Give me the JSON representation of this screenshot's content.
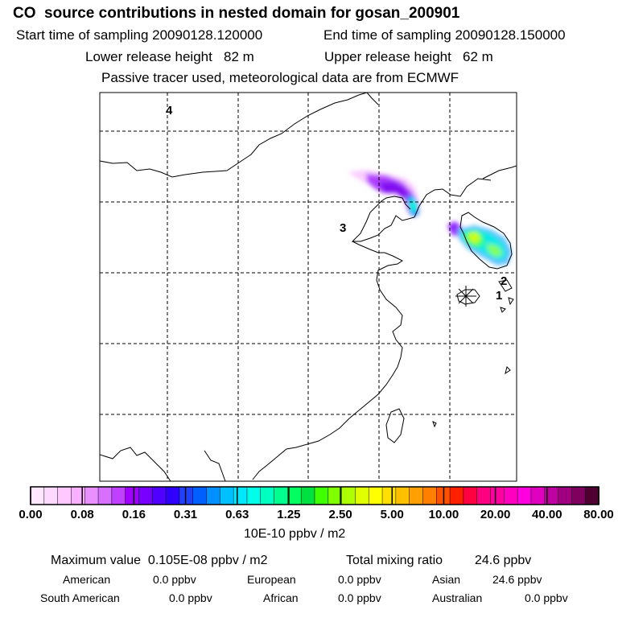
{
  "title": "CO  source contributions in nested domain for gosan_200901",
  "header": {
    "start_time": "Start time of sampling 20090128.120000",
    "end_time": "End time of sampling 20090128.150000",
    "lower_height": "Lower release height   82 m",
    "upper_height": "Upper release height   62 m",
    "tracer_note": "Passive tracer used, meteorological data are from ECMWF"
  },
  "map": {
    "region_labels": [
      "4",
      "3",
      "2",
      "1"
    ],
    "receptor_marker": "star-receptor"
  },
  "colorbar": {
    "tick_labels": [
      "0.00",
      "0.08",
      "0.16",
      "0.31",
      "0.63",
      "1.25",
      "2.50",
      "5.00",
      "10.00",
      "20.00",
      "40.00",
      "80.00"
    ],
    "units": "10E-10 ppbv / m2",
    "colors": [
      "#ffe8ff",
      "#ffd8ff",
      "#ffc8ff",
      "#f8b0ff",
      "#e890ff",
      "#d870ff",
      "#c040ff",
      "#a000ff",
      "#7800ff",
      "#5000ff",
      "#3000ff",
      "#2040ff",
      "#0060ff",
      "#0090ff",
      "#00c0ff",
      "#00e8ff",
      "#00ffe8",
      "#00ffc0",
      "#00ff90",
      "#00ff60",
      "#00e040",
      "#40ff00",
      "#80ff00",
      "#b0ff00",
      "#e0ff00",
      "#ffff00",
      "#ffe000",
      "#ffc000",
      "#ffa000",
      "#ff8000",
      "#ff5000",
      "#ff2000",
      "#ff0040",
      "#ff0080",
      "#ff00a0",
      "#ff00c0",
      "#ff00e0",
      "#e000c0",
      "#c000a0",
      "#a00080",
      "#800060",
      "#500030"
    ]
  },
  "summary": {
    "max_label": "Maximum value  0.105E-08 ppbv / m2",
    "total_label": "Total mixing ratio",
    "total_value": "24.6 ppbv",
    "regions": [
      {
        "name": "American",
        "value": "0.0 ppbv"
      },
      {
        "name": "European",
        "value": "0.0 ppbv"
      },
      {
        "name": "Asian",
        "value": "24.6 ppbv"
      },
      {
        "name": "South American",
        "value": "0.0 ppbv"
      },
      {
        "name": "African",
        "value": "0.0 ppbv"
      },
      {
        "name": "Australian",
        "value": "0.0 ppbv"
      }
    ]
  }
}
